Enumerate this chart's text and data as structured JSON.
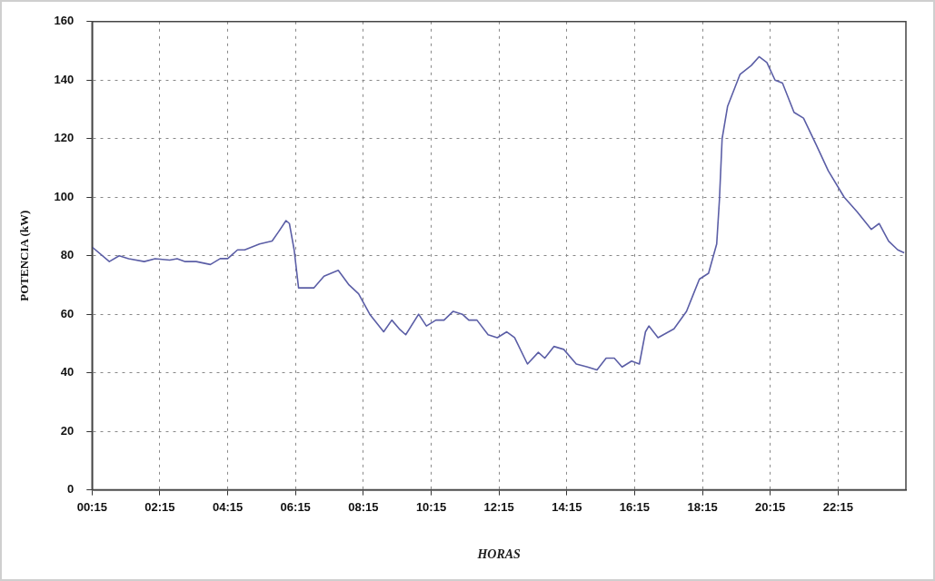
{
  "chart_data": {
    "type": "line",
    "xlabel": "HORAS",
    "ylabel": "POTENCIA (kW)",
    "xlim": [
      0.25,
      24.25
    ],
    "ylim": [
      0,
      160
    ],
    "xticks": [
      {
        "value": 0.25,
        "label": "00:15"
      },
      {
        "value": 2.25,
        "label": "02:15"
      },
      {
        "value": 4.25,
        "label": "04:15"
      },
      {
        "value": 6.25,
        "label": "06:15"
      },
      {
        "value": 8.25,
        "label": "08:15"
      },
      {
        "value": 10.25,
        "label": "10:15"
      },
      {
        "value": 12.25,
        "label": "12:15"
      },
      {
        "value": 14.25,
        "label": "14:15"
      },
      {
        "value": 16.25,
        "label": "16:15"
      },
      {
        "value": 18.25,
        "label": "18:15"
      },
      {
        "value": 20.25,
        "label": "20:15"
      },
      {
        "value": 22.25,
        "label": "22:15"
      }
    ],
    "yticks": [
      0,
      20,
      40,
      60,
      80,
      100,
      120,
      140,
      160
    ],
    "grid": true,
    "legend": false,
    "marker": "none",
    "line_style": "solid",
    "series": [
      {
        "color": "#5b5ea6",
        "x": [
          0.25,
          0.76,
          1.05,
          1.33,
          1.79,
          2.11,
          2.54,
          2.76,
          3.0,
          3.32,
          3.74,
          4.03,
          4.25,
          4.54,
          4.75,
          5.19,
          5.56,
          5.74,
          5.97,
          6.07,
          6.21,
          6.34,
          6.63,
          6.79,
          7.09,
          7.51,
          7.83,
          8.11,
          8.44,
          8.85,
          9.09,
          9.31,
          9.5,
          9.88,
          10.11,
          10.39,
          10.63,
          10.9,
          11.17,
          11.36,
          11.6,
          11.93,
          12.2,
          12.48,
          12.71,
          13.09,
          13.41,
          13.6,
          13.87,
          14.16,
          14.53,
          14.86,
          15.14,
          15.41,
          15.65,
          15.88,
          16.16,
          16.39,
          16.57,
          16.67,
          16.94,
          17.41,
          17.78,
          18.16,
          18.43,
          18.67,
          18.75,
          18.83,
          18.99,
          19.36,
          19.69,
          19.92,
          20.15,
          20.39,
          20.61,
          20.95,
          21.23,
          21.6,
          21.96,
          22.43,
          22.81,
          23.23,
          23.46,
          23.74,
          24.01,
          24.2
        ],
        "values": [
          83,
          78,
          80,
          79,
          78,
          79,
          78.5,
          79,
          78,
          78,
          77,
          79,
          79,
          82,
          82,
          84,
          85,
          88,
          92,
          91,
          82,
          69,
          69,
          69,
          73,
          75,
          70,
          67,
          60,
          54,
          58,
          55,
          53,
          60,
          56,
          58,
          58,
          61,
          60,
          58,
          58,
          53,
          52,
          54,
          52,
          43,
          47,
          45,
          49,
          48,
          43,
          42,
          41,
          45,
          45,
          42,
          44,
          43,
          54,
          56,
          52,
          55,
          61,
          72,
          74,
          84,
          99,
          120,
          131,
          142,
          145,
          148,
          146,
          140,
          139,
          129,
          127,
          118,
          109,
          100,
          95,
          89,
          91,
          85,
          82,
          81
        ]
      }
    ]
  }
}
